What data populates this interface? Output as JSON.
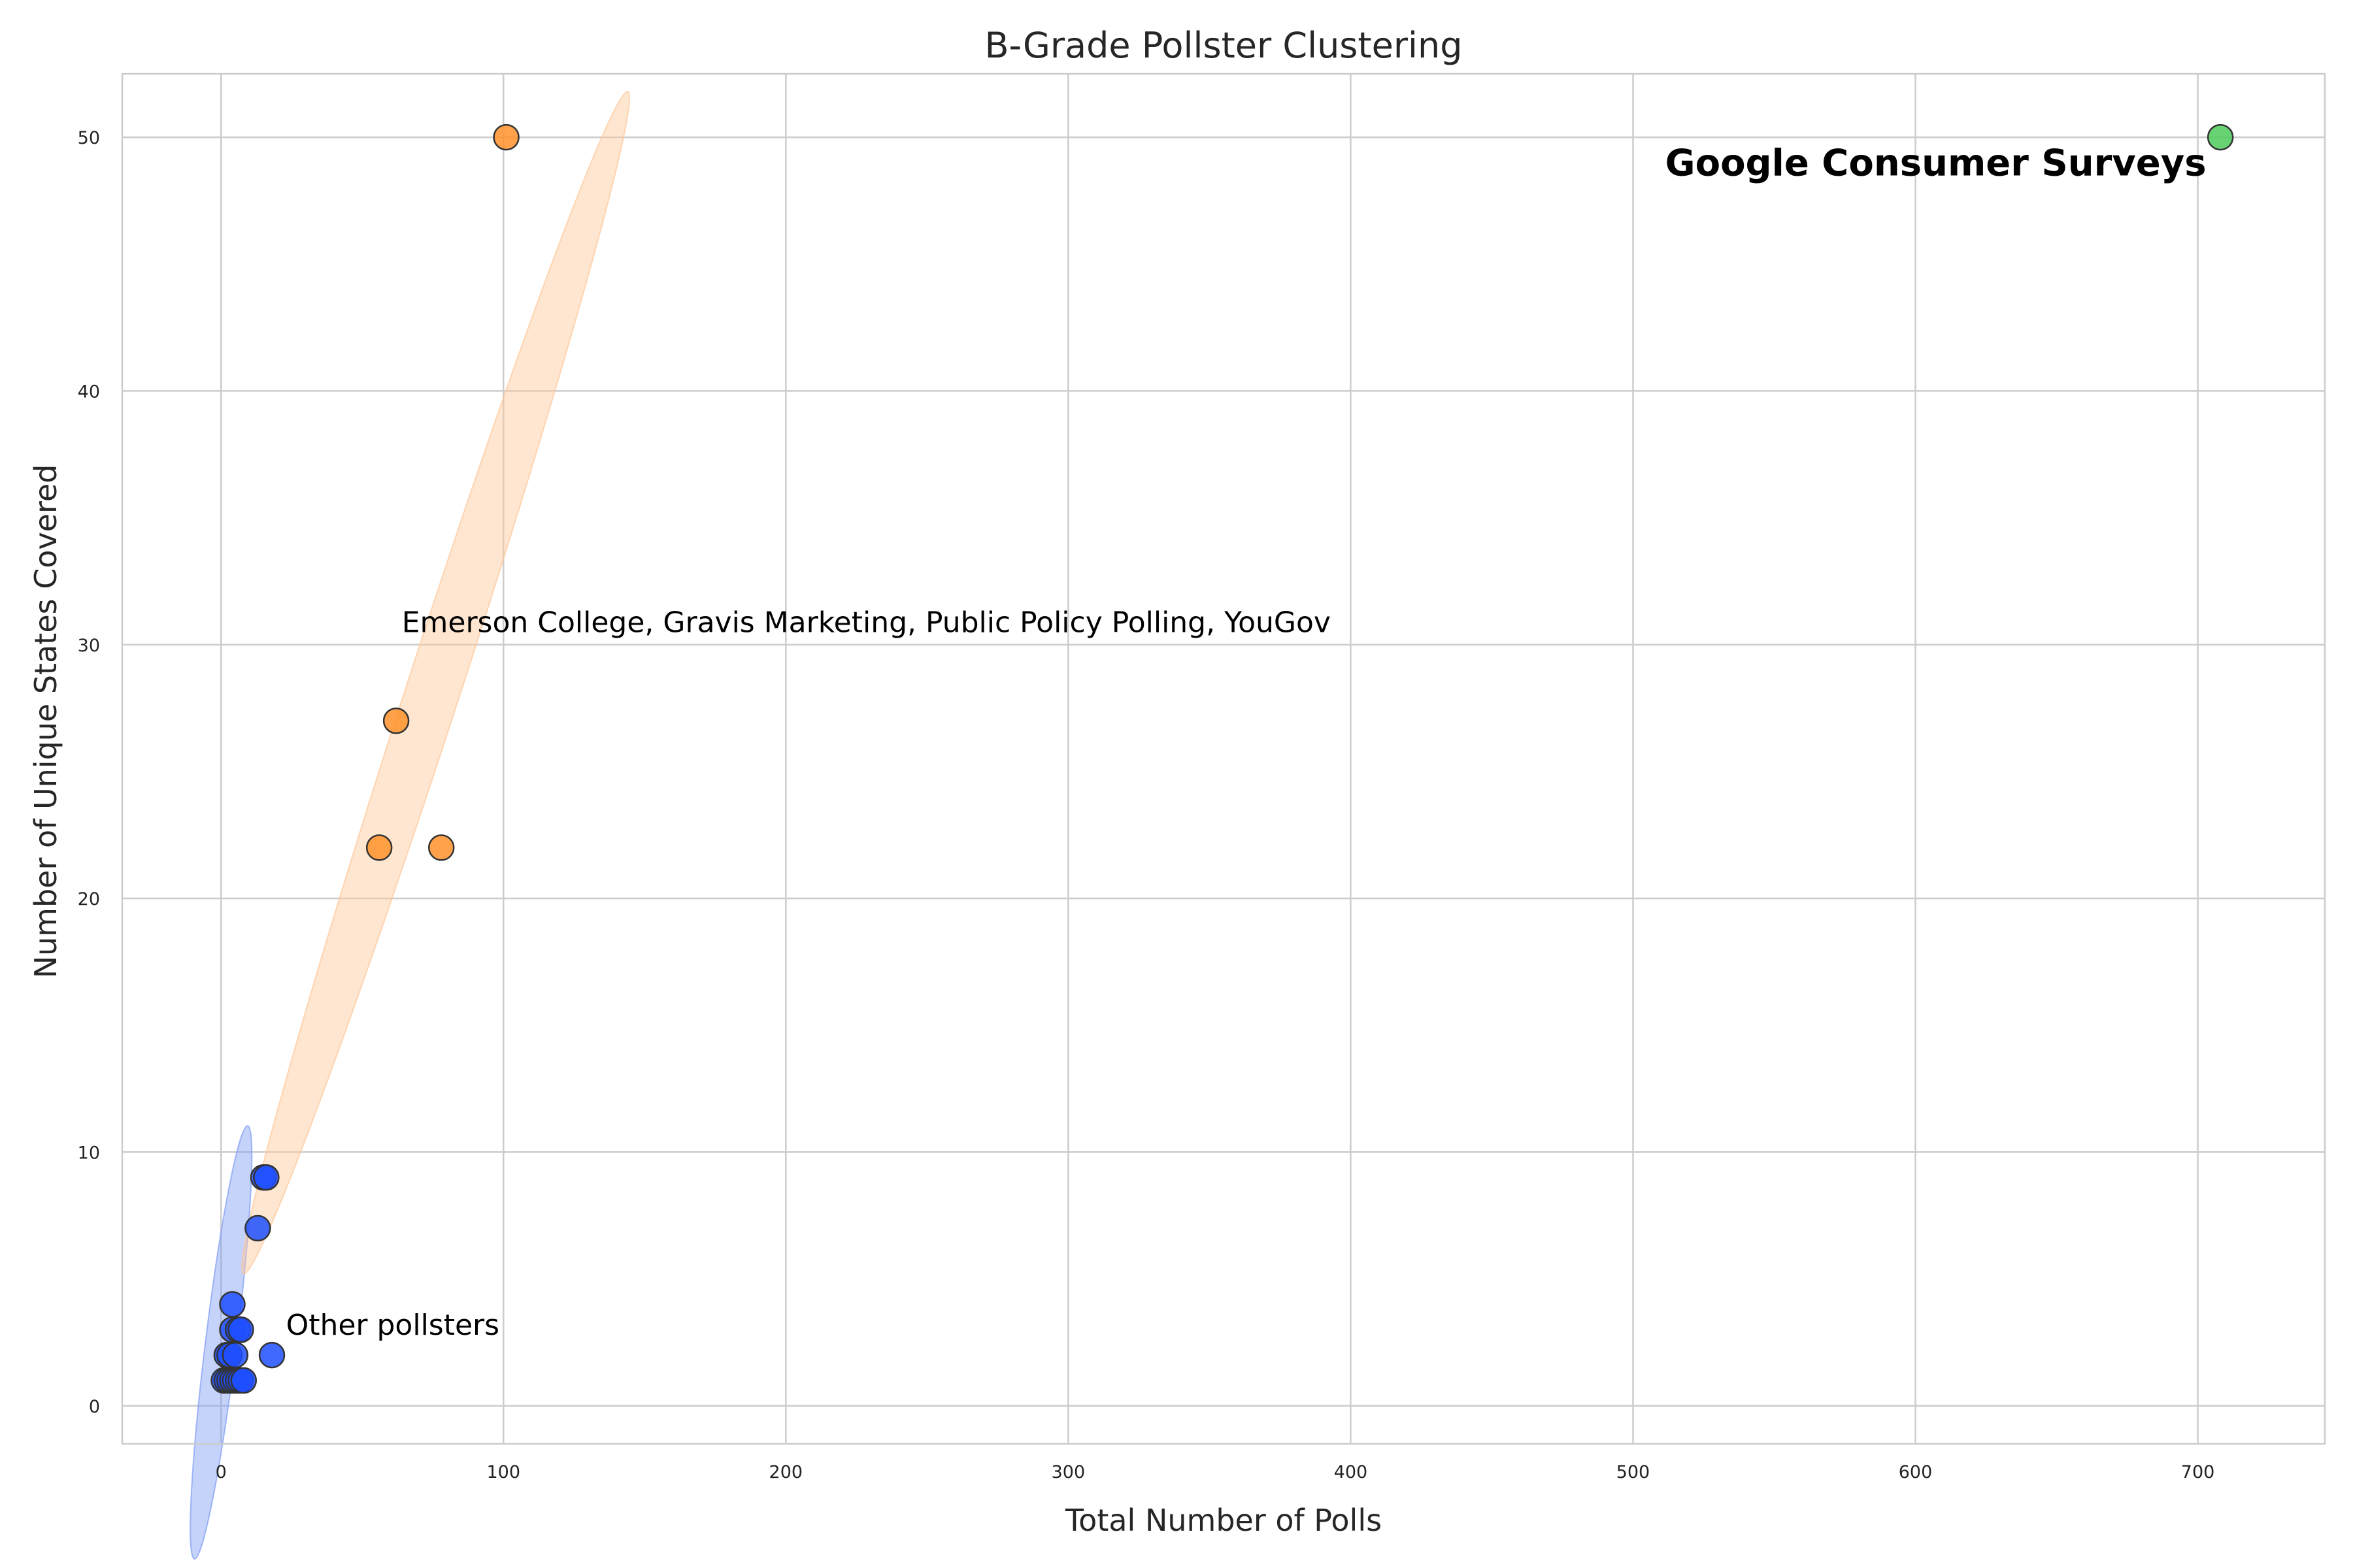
{
  "chart_data": {
    "type": "scatter",
    "title": "B-Grade Pollster Clustering",
    "xlabel": "Total Number of Polls",
    "ylabel": "Number of Unique States Covered",
    "xlim": [
      -35,
      745
    ],
    "ylim": [
      -1.5,
      52.5
    ],
    "x_ticks": [
      0,
      100,
      200,
      300,
      400,
      500,
      600,
      700
    ],
    "y_ticks": [
      0,
      10,
      20,
      30,
      40,
      50
    ],
    "grid": true,
    "legend": "none",
    "clusters": [
      {
        "color": "#1f4fff",
        "ellipse": {
          "cx": 0,
          "cy": 2.5,
          "rx": 5.5,
          "ry": 8.6,
          "angle": 7,
          "color": "#7f9cf5"
        },
        "points": [
          {
            "x": 1,
            "y": 1
          },
          {
            "x": 2,
            "y": 1
          },
          {
            "x": 3,
            "y": 1
          },
          {
            "x": 4,
            "y": 1
          },
          {
            "x": 5,
            "y": 1
          },
          {
            "x": 6,
            "y": 1
          },
          {
            "x": 7,
            "y": 1
          },
          {
            "x": 8,
            "y": 1
          },
          {
            "x": 2,
            "y": 2
          },
          {
            "x": 3,
            "y": 2
          },
          {
            "x": 5,
            "y": 2
          },
          {
            "x": 18,
            "y": 2
          },
          {
            "x": 4,
            "y": 3
          },
          {
            "x": 6,
            "y": 3
          },
          {
            "x": 7,
            "y": 3
          },
          {
            "x": 4,
            "y": 4
          },
          {
            "x": 13,
            "y": 7
          },
          {
            "x": 15,
            "y": 9
          },
          {
            "x": 16,
            "y": 9
          }
        ]
      },
      {
        "color": "#ff922b",
        "ellipse": {
          "cx": 76,
          "cy": 28.5,
          "rx": 9.5,
          "ry": 24.5,
          "angle": 18,
          "color": "#ffc898"
        },
        "points": [
          {
            "x": 56,
            "y": 22
          },
          {
            "x": 78,
            "y": 22
          },
          {
            "x": 62,
            "y": 27
          },
          {
            "x": 101,
            "y": 50
          }
        ]
      },
      {
        "color": "#4ecb5b",
        "points": [
          {
            "x": 708,
            "y": 50
          }
        ]
      }
    ],
    "annotations": {
      "other": {
        "text": "Other pollsters",
        "x": 23,
        "y": 2.8
      },
      "mid": {
        "text": "Emerson College, Gravis Marketing, Public Policy Polling, YouGov",
        "x": 64,
        "y": 30.5
      },
      "top": {
        "text": "Google Consumer Surveys",
        "x": 703,
        "y": 48.5
      }
    }
  }
}
